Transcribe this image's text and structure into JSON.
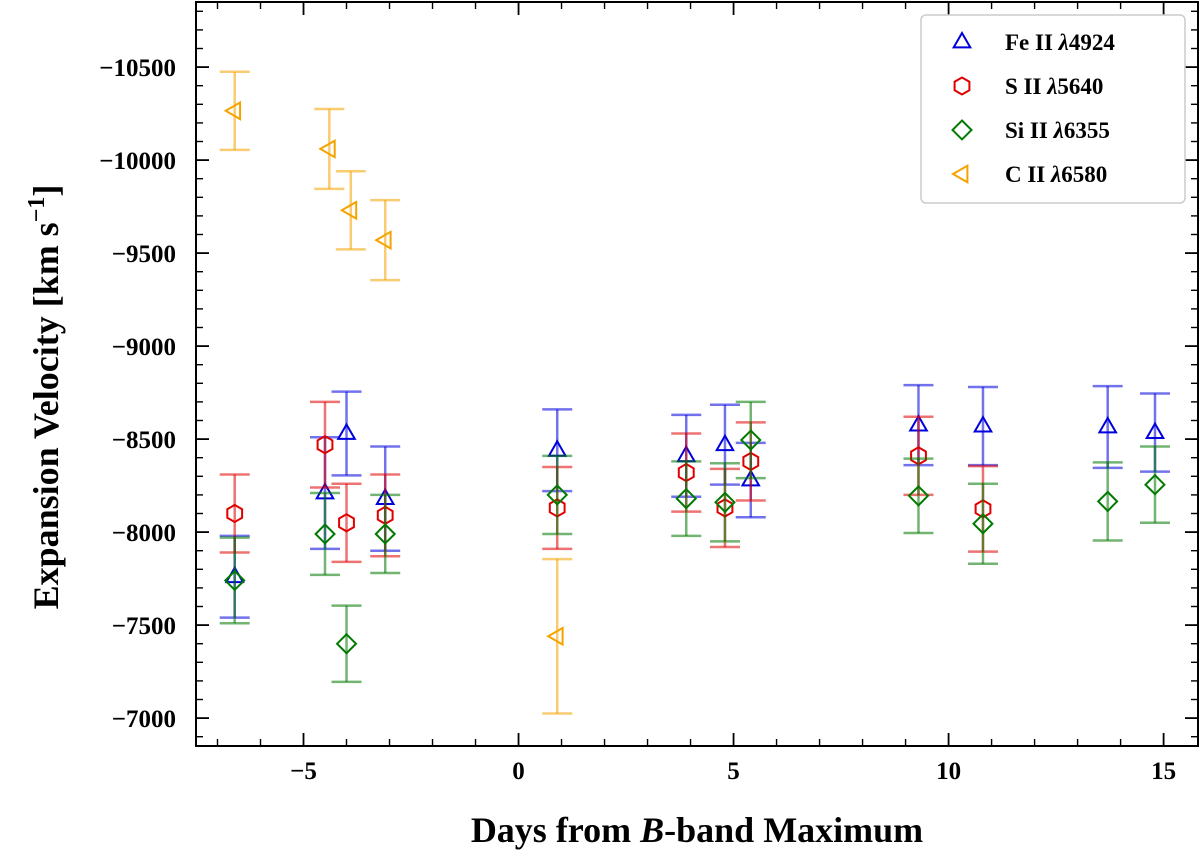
{
  "chart_data": {
    "type": "scatter",
    "title": "",
    "xlabel_parts": [
      "Days from ",
      "B",
      "-band Maximum"
    ],
    "ylabel_parts": [
      "Expansion Velocity [km s",
      "−1",
      "]"
    ],
    "xlim": [
      -7.5,
      15.8
    ],
    "ylim": [
      -6850,
      -10850
    ],
    "x_ticks": [
      -5,
      0,
      5,
      10,
      15
    ],
    "x_tick_labels": [
      "−5",
      "0",
      "5",
      "10",
      "15"
    ],
    "y_ticks": [
      -7000,
      -7500,
      -8000,
      -8500,
      -9000,
      -9500,
      -10000,
      -10500
    ],
    "y_tick_labels": [
      "−7000",
      "−7500",
      "−8000",
      "−8500",
      "−9000",
      "−9500",
      "−10000",
      "−10500"
    ],
    "legend_position": "upper-right",
    "grid": false,
    "series": [
      {
        "name": "Fe II λ4924",
        "name_parts": [
          "Fe II ",
          "λ",
          "4924"
        ],
        "marker": "triangle-up",
        "color": "#0000dd",
        "points": [
          {
            "x": -6.6,
            "y": -7760,
            "err": 220
          },
          {
            "x": -4.5,
            "y": -8210,
            "err": 300
          },
          {
            "x": -4.0,
            "y": -8530,
            "err": 225
          },
          {
            "x": -3.1,
            "y": -8180,
            "err": 280
          },
          {
            "x": 0.9,
            "y": -8440,
            "err": 220
          },
          {
            "x": 3.9,
            "y": -8410,
            "err": 220
          },
          {
            "x": 4.8,
            "y": -8470,
            "err": 215
          },
          {
            "x": 5.4,
            "y": -8280,
            "err": 200
          },
          {
            "x": 9.3,
            "y": -8575,
            "err": 215
          },
          {
            "x": 10.8,
            "y": -8570,
            "err": 210
          },
          {
            "x": 13.7,
            "y": -8565,
            "err": 220
          },
          {
            "x": 14.8,
            "y": -8535,
            "err": 210
          }
        ]
      },
      {
        "name": "S II λ5640",
        "name_parts": [
          "S II ",
          "λ",
          "5640"
        ],
        "marker": "hexagon",
        "color": "#e00000",
        "points": [
          {
            "x": -6.6,
            "y": -8100,
            "err": 210
          },
          {
            "x": -4.5,
            "y": -8470,
            "err": 230
          },
          {
            "x": -4.0,
            "y": -8050,
            "err": 210
          },
          {
            "x": -3.1,
            "y": -8090,
            "err": 220
          },
          {
            "x": 0.9,
            "y": -8130,
            "err": 220
          },
          {
            "x": 3.9,
            "y": -8320,
            "err": 210
          },
          {
            "x": 4.8,
            "y": -8130,
            "err": 210
          },
          {
            "x": 5.4,
            "y": -8380,
            "err": 210
          },
          {
            "x": 9.3,
            "y": -8410,
            "err": 210
          },
          {
            "x": 10.8,
            "y": -8125,
            "err": 230
          }
        ]
      },
      {
        "name": "Si II λ6355",
        "name_parts": [
          "Si II ",
          "λ",
          "6355"
        ],
        "marker": "diamond",
        "color": "#007a00",
        "points": [
          {
            "x": -6.6,
            "y": -7740,
            "err": 230
          },
          {
            "x": -4.5,
            "y": -7990,
            "err": 220
          },
          {
            "x": -4.0,
            "y": -7400,
            "err": 205
          },
          {
            "x": -3.1,
            "y": -7990,
            "err": 210
          },
          {
            "x": 0.9,
            "y": -8200,
            "err": 210
          },
          {
            "x": 3.9,
            "y": -8180,
            "err": 200
          },
          {
            "x": 4.8,
            "y": -8160,
            "err": 210
          },
          {
            "x": 5.4,
            "y": -8495,
            "err": 205
          },
          {
            "x": 9.3,
            "y": -8195,
            "err": 200
          },
          {
            "x": 10.8,
            "y": -8045,
            "err": 215
          },
          {
            "x": 13.7,
            "y": -8165,
            "err": 210
          },
          {
            "x": 14.8,
            "y": -8255,
            "err": 205
          }
        ]
      },
      {
        "name": "C II λ6580",
        "name_parts": [
          "C II ",
          "λ",
          "6580"
        ],
        "marker": "triangle-left",
        "color": "#f5a300",
        "points": [
          {
            "x": -6.6,
            "y": -10265,
            "err": 210
          },
          {
            "x": -4.4,
            "y": -10060,
            "err": 215
          },
          {
            "x": -3.9,
            "y": -9730,
            "err": 210
          },
          {
            "x": -3.1,
            "y": -9570,
            "err": 215
          },
          {
            "x": 0.9,
            "y": -7440,
            "err": 415
          }
        ]
      }
    ]
  }
}
